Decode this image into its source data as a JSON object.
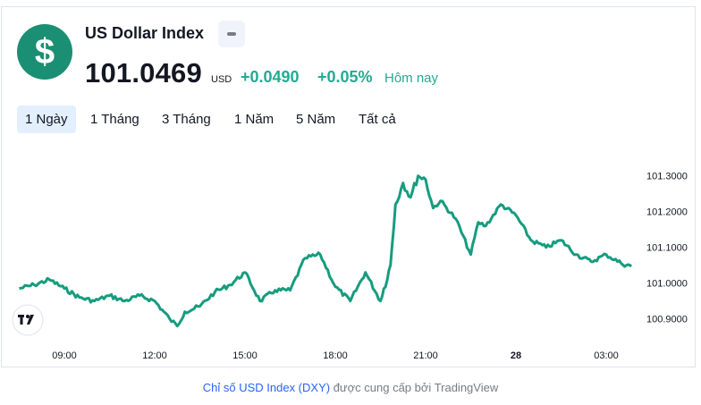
{
  "header": {
    "logo_symbol": "$",
    "title": "US Dollar Index",
    "price": "101.0469",
    "currency": "USD",
    "change": "+0.0490",
    "change_pct": "+0.05%",
    "period_label": "Hôm nay"
  },
  "tabs": [
    "1 Ngày",
    "1 Tháng",
    "3 Tháng",
    "1 Năm",
    "5 Năm",
    "Tất cả"
  ],
  "active_tab": "1 Ngày",
  "colors": {
    "accent": "#1b8f73",
    "line": "#169c7e",
    "positive": "#22ab94",
    "tab_active": "#e3effd"
  },
  "chart_data": {
    "type": "line",
    "series": [
      {
        "x": [
          "07:30",
          "08:00",
          "08:30",
          "09:00",
          "09:30",
          "10:00",
          "10:30",
          "11:00",
          "11:30",
          "12:00",
          "12:30",
          "12:45",
          "13:00",
          "13:30",
          "14:00",
          "14:30",
          "15:00",
          "15:30",
          "16:00",
          "16:30",
          "17:00",
          "17:30",
          "18:00",
          "18:30",
          "19:00",
          "19:30",
          "19:50",
          "20:00",
          "20:15",
          "20:30",
          "20:45",
          "21:00",
          "21:15",
          "21:30",
          "22:00",
          "22:30",
          "22:45",
          "23:00",
          "23:30",
          "00:00",
          "00:30",
          "01:00",
          "01:30",
          "02:00",
          "02:30",
          "03:00",
          "03:30",
          "03:50"
        ],
        "y": [
          100.985,
          100.995,
          101.01,
          100.985,
          100.96,
          100.95,
          100.965,
          100.95,
          100.965,
          100.95,
          100.9,
          100.88,
          100.92,
          100.935,
          100.975,
          100.995,
          101.03,
          100.95,
          100.98,
          100.98,
          101.07,
          101.08,
          100.99,
          100.95,
          101.03,
          100.95,
          101.05,
          101.22,
          101.28,
          101.24,
          101.3,
          101.29,
          101.21,
          101.23,
          101.18,
          101.08,
          101.17,
          101.16,
          101.22,
          101.19,
          101.12,
          101.1,
          101.12,
          101.08,
          101.06,
          101.08,
          101.055,
          101.047
        ]
      }
    ],
    "x_ticks": [
      "09:00",
      "12:00",
      "15:00",
      "18:00",
      "21:00",
      "28",
      "03:00"
    ],
    "y_ticks": [
      "101.3000",
      "101.2000",
      "101.1000",
      "101.0000",
      "100.9000"
    ],
    "ylim": [
      100.86,
      101.37
    ],
    "grid": false
  },
  "footer": {
    "link_text": "Chỉ số USD Index (DXY)",
    "provided_by": "được cung cấp bởi",
    "provider": "TradingView"
  },
  "tv_logo": "TV"
}
